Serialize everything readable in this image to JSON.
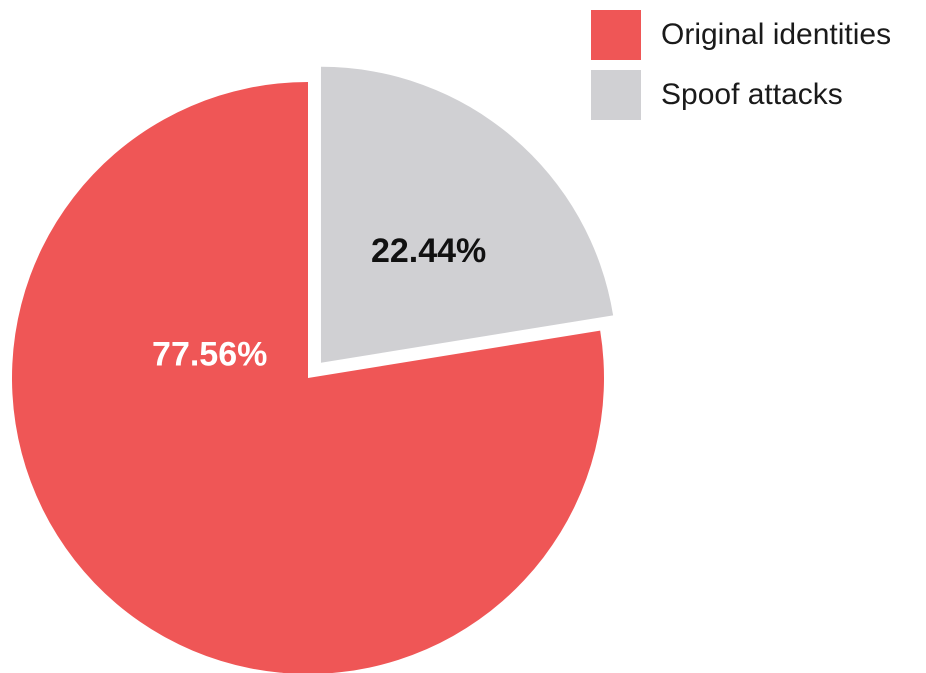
{
  "chart_data": {
    "type": "pie",
    "title": "",
    "slices": [
      {
        "name": "Original identities",
        "value": 77.56,
        "label": "77.56%",
        "color": "#ef5656",
        "label_color": "#ffffff",
        "exploded": false
      },
      {
        "name": "Spoof attacks",
        "value": 22.44,
        "label": "22.44%",
        "color": "#d0d0d3",
        "label_color": "#111111",
        "exploded": true
      }
    ],
    "legend_placement": "top-right",
    "start_angle_deg": 0,
    "direction": "clockwise"
  },
  "legend": {
    "items": [
      {
        "label": "Original identities",
        "color": "#ef5656"
      },
      {
        "label": "Spoof attacks",
        "color": "#d0d0d3"
      }
    ]
  }
}
